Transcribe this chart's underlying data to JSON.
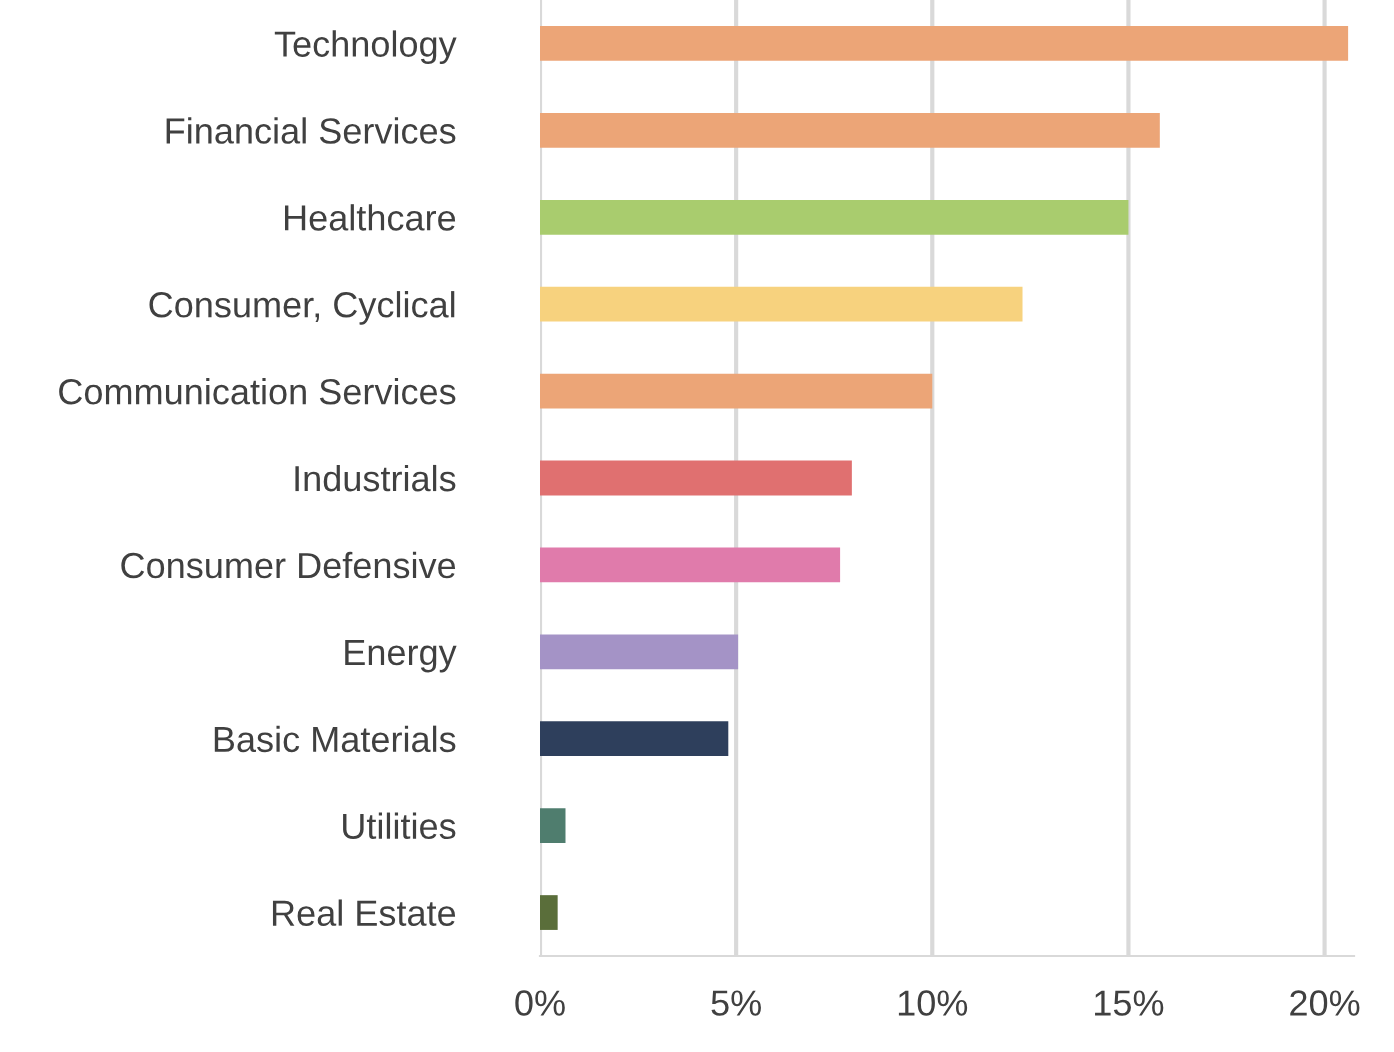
{
  "chart_data": {
    "type": "bar",
    "orientation": "horizontal",
    "categories": [
      "Technology",
      "Financial Services",
      "Healthcare",
      "Consumer, Cyclical",
      "Communication Services",
      "Industrials",
      "Consumer Defensive",
      "Energy",
      "Basic Materials",
      "Utilities",
      "Real Estate"
    ],
    "values": [
      20.6,
      15.8,
      15.0,
      12.3,
      10.0,
      7.95,
      7.65,
      5.05,
      4.8,
      0.65,
      0.45
    ],
    "colors": [
      "#eca577",
      "#eca577",
      "#a9cc6e",
      "#f7d27e",
      "#eca577",
      "#e07070",
      "#e07bab",
      "#a493c6",
      "#2e3f5c",
      "#4f7d6e",
      "#5a6e3a"
    ],
    "xlim": [
      0,
      20.75
    ],
    "xticks": [
      {
        "value": 0,
        "label": "0%"
      },
      {
        "value": 5,
        "label": "5%"
      },
      {
        "value": 10,
        "label": "10%"
      },
      {
        "value": 15,
        "label": "15%"
      },
      {
        "value": 20,
        "label": "20%"
      }
    ],
    "grid": "x"
  }
}
